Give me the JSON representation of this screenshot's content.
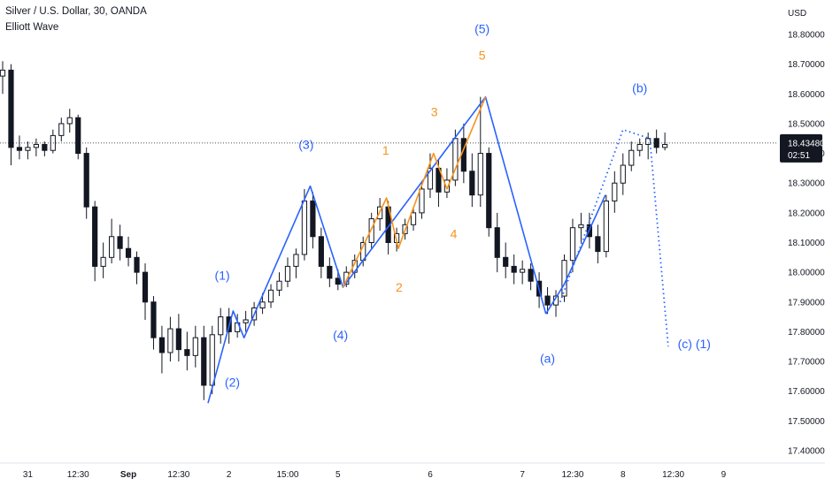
{
  "header": {
    "title": "Silver / U.S. Dollar, 30, OANDA",
    "indicator": "Elliott Wave"
  },
  "colors": {
    "candle": "#131722",
    "wave_blue": "#2962ff",
    "wave_orange": "#f7931a",
    "price_tag_bg": "#131722",
    "price_tag_text": "#ffffff"
  },
  "chart_data": {
    "type": "candlestick",
    "currency_label": "USD",
    "y_ticks": [
      "18.80000",
      "18.70000",
      "18.60000",
      "18.50000",
      "18.40000",
      "18.30000",
      "18.20000",
      "18.10000",
      "18.00000",
      "17.90000",
      "17.80000",
      "17.70000",
      "17.60000",
      "17.50000",
      "17.40000"
    ],
    "ylim": [
      17.35,
      18.9
    ],
    "x_ticks": [
      {
        "label": "31",
        "bar": 3,
        "bold": false
      },
      {
        "label": "12:30",
        "bar": 9,
        "bold": false
      },
      {
        "label": "Sep",
        "bar": 15,
        "bold": true
      },
      {
        "label": "12:30",
        "bar": 21,
        "bold": false
      },
      {
        "label": "2",
        "bar": 27,
        "bold": false
      },
      {
        "label": "15:00",
        "bar": 34,
        "bold": false
      },
      {
        "label": "5",
        "bar": 40,
        "bold": false
      },
      {
        "label": "6",
        "bar": 51,
        "bold": false
      },
      {
        "label": "7",
        "bar": 62,
        "bold": false
      },
      {
        "label": "12:30",
        "bar": 68,
        "bold": false
      },
      {
        "label": "8",
        "bar": 74,
        "bold": false
      },
      {
        "label": "12:30",
        "bar": 80,
        "bold": false
      },
      {
        "label": "9",
        "bar": 86,
        "bold": false
      }
    ],
    "current_price": {
      "price": "18.43480",
      "countdown": "02:51",
      "value": 18.4348
    },
    "candles": [
      [
        18.66,
        18.71,
        18.6,
        18.68
      ],
      [
        18.68,
        18.7,
        18.36,
        18.42
      ],
      [
        18.42,
        18.46,
        18.38,
        18.41
      ],
      [
        18.41,
        18.44,
        18.38,
        18.42
      ],
      [
        18.42,
        18.45,
        18.39,
        18.43
      ],
      [
        18.43,
        18.44,
        18.39,
        18.41
      ],
      [
        18.41,
        18.48,
        18.4,
        18.46
      ],
      [
        18.46,
        18.52,
        18.44,
        18.5
      ],
      [
        18.5,
        18.55,
        18.47,
        18.52
      ],
      [
        18.52,
        18.53,
        18.38,
        18.4
      ],
      [
        18.4,
        18.42,
        18.18,
        18.22
      ],
      [
        18.22,
        18.24,
        17.97,
        18.02
      ],
      [
        18.02,
        18.1,
        17.98,
        18.05
      ],
      [
        18.05,
        18.18,
        18.03,
        18.12
      ],
      [
        18.12,
        18.16,
        18.04,
        18.08
      ],
      [
        18.08,
        18.12,
        18.02,
        18.05
      ],
      [
        18.05,
        18.07,
        17.96,
        18.0
      ],
      [
        18.0,
        18.03,
        17.84,
        17.9
      ],
      [
        17.9,
        17.92,
        17.74,
        17.78
      ],
      [
        17.78,
        17.82,
        17.66,
        17.73
      ],
      [
        17.73,
        17.85,
        17.7,
        17.81
      ],
      [
        17.81,
        17.86,
        17.7,
        17.74
      ],
      [
        17.74,
        17.8,
        17.67,
        17.72
      ],
      [
        17.72,
        17.82,
        17.68,
        17.78
      ],
      [
        17.78,
        17.82,
        17.57,
        17.62
      ],
      [
        17.62,
        17.82,
        17.59,
        17.79
      ],
      [
        17.79,
        17.88,
        17.76,
        17.85
      ],
      [
        17.85,
        17.88,
        17.76,
        17.8
      ],
      [
        17.8,
        17.86,
        17.78,
        17.83
      ],
      [
        17.83,
        17.87,
        17.8,
        17.84
      ],
      [
        17.84,
        17.9,
        17.82,
        17.88
      ],
      [
        17.88,
        17.93,
        17.86,
        17.9
      ],
      [
        17.9,
        17.96,
        17.88,
        17.94
      ],
      [
        17.94,
        18.0,
        17.92,
        17.97
      ],
      [
        17.97,
        18.05,
        17.95,
        18.02
      ],
      [
        18.02,
        18.08,
        17.98,
        18.06
      ],
      [
        18.06,
        18.28,
        18.04,
        18.24
      ],
      [
        18.24,
        18.27,
        18.08,
        18.12
      ],
      [
        18.12,
        18.15,
        17.98,
        18.02
      ],
      [
        18.02,
        18.05,
        17.95,
        17.98
      ],
      [
        17.98,
        18.01,
        17.94,
        17.96
      ],
      [
        17.96,
        18.02,
        17.95,
        18.0
      ],
      [
        18.0,
        18.06,
        17.98,
        18.04
      ],
      [
        18.04,
        18.12,
        18.02,
        18.1
      ],
      [
        18.1,
        18.2,
        18.08,
        18.18
      ],
      [
        18.18,
        18.25,
        18.14,
        18.22
      ],
      [
        18.22,
        18.24,
        18.06,
        18.1
      ],
      [
        18.1,
        18.15,
        18.07,
        18.13
      ],
      [
        18.13,
        18.18,
        18.11,
        18.16
      ],
      [
        18.16,
        18.22,
        18.14,
        18.2
      ],
      [
        18.2,
        18.3,
        18.18,
        18.28
      ],
      [
        18.28,
        18.4,
        18.25,
        18.35
      ],
      [
        18.35,
        18.38,
        18.22,
        18.27
      ],
      [
        18.27,
        18.35,
        18.25,
        18.31
      ],
      [
        18.31,
        18.48,
        18.29,
        18.45
      ],
      [
        18.45,
        18.5,
        18.3,
        18.34
      ],
      [
        18.34,
        18.4,
        18.22,
        18.26
      ],
      [
        18.26,
        18.59,
        18.22,
        18.4
      ],
      [
        18.4,
        18.42,
        18.12,
        18.15
      ],
      [
        18.15,
        18.2,
        18.0,
        18.05
      ],
      [
        18.05,
        18.1,
        17.98,
        18.02
      ],
      [
        18.02,
        18.06,
        17.96,
        18.0
      ],
      [
        18.0,
        18.04,
        17.96,
        18.01
      ],
      [
        18.01,
        18.03,
        17.94,
        17.97
      ],
      [
        17.97,
        18.0,
        17.88,
        17.92
      ],
      [
        17.92,
        17.95,
        17.86,
        17.89
      ],
      [
        17.89,
        17.94,
        17.85,
        17.92
      ],
      [
        17.92,
        18.06,
        17.9,
        18.04
      ],
      [
        18.04,
        18.18,
        18.0,
        18.15
      ],
      [
        18.15,
        18.2,
        18.1,
        18.16
      ],
      [
        18.16,
        18.2,
        18.08,
        18.12
      ],
      [
        18.12,
        18.16,
        18.03,
        18.07
      ],
      [
        18.07,
        18.26,
        18.05,
        18.24
      ],
      [
        18.24,
        18.34,
        18.2,
        18.3
      ],
      [
        18.3,
        18.4,
        18.26,
        18.36
      ],
      [
        18.36,
        18.44,
        18.34,
        18.41
      ],
      [
        18.41,
        18.45,
        18.39,
        18.43
      ],
      [
        18.43,
        18.47,
        18.38,
        18.45
      ],
      [
        18.45,
        18.48,
        18.4,
        18.42
      ],
      [
        18.42,
        18.47,
        18.41,
        18.43
      ]
    ],
    "bar_x": {
      "first": 3,
      "spacing": 9.47
    },
    "waves": [
      {
        "name": "primary",
        "color": "#2962ff",
        "style": "solid",
        "points": [
          [
            24.5,
            17.56
          ],
          [
            27.5,
            17.87
          ],
          [
            28.8,
            17.78
          ],
          [
            36.7,
            18.29
          ],
          [
            40.6,
            17.95
          ],
          [
            57.6,
            18.59
          ],
          [
            64.8,
            17.86
          ]
        ]
      },
      {
        "name": "intermediate",
        "color": "#f7931a",
        "style": "solid",
        "points": [
          [
            40.6,
            17.95
          ],
          [
            45.8,
            18.25
          ],
          [
            47.2,
            18.08
          ],
          [
            51.4,
            18.4
          ],
          [
            53.0,
            18.28
          ],
          [
            57.6,
            18.59
          ]
        ]
      },
      {
        "name": "projection-b",
        "color": "#2962ff",
        "style": "solid",
        "points": [
          [
            64.8,
            17.86
          ],
          [
            67.0,
            17.96
          ],
          [
            71.9,
            18.26
          ]
        ]
      },
      {
        "name": "projection-dotted",
        "color": "#2962ff",
        "style": "dotted",
        "points": [
          [
            66.5,
            17.9
          ],
          [
            74.0,
            18.48
          ],
          [
            77.2,
            18.45
          ],
          [
            79.4,
            17.75
          ]
        ]
      }
    ],
    "labels": [
      {
        "text": "(1)",
        "bar": 26.2,
        "price": 17.99,
        "color": "blue"
      },
      {
        "text": "(2)",
        "bar": 27.4,
        "price": 17.63,
        "color": "blue"
      },
      {
        "text": "(3)",
        "bar": 36.2,
        "price": 18.43,
        "color": "blue"
      },
      {
        "text": "(4)",
        "bar": 40.3,
        "price": 17.79,
        "color": "blue"
      },
      {
        "text": "(5)",
        "bar": 57.2,
        "price": 18.82,
        "color": "blue"
      },
      {
        "text": "5",
        "bar": 57.2,
        "price": 18.73,
        "color": "orange"
      },
      {
        "text": "1",
        "bar": 45.7,
        "price": 18.41,
        "color": "orange"
      },
      {
        "text": "2",
        "bar": 47.3,
        "price": 17.95,
        "color": "orange"
      },
      {
        "text": "3",
        "bar": 51.5,
        "price": 18.54,
        "color": "orange"
      },
      {
        "text": "4",
        "bar": 53.8,
        "price": 18.13,
        "color": "orange"
      },
      {
        "text": "(a)",
        "bar": 65.0,
        "price": 17.71,
        "color": "blue"
      },
      {
        "text": "(b)",
        "bar": 76.0,
        "price": 18.62,
        "color": "blue"
      },
      {
        "text": "(c) (1)",
        "bar": 82.5,
        "price": 17.76,
        "color": "blue"
      }
    ]
  }
}
